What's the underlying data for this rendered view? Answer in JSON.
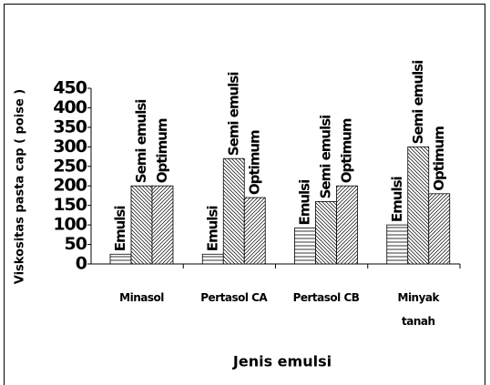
{
  "chart_data": {
    "type": "bar",
    "y_label": "Viskositas pasta cap ( poise )",
    "x_label": "Jenis emulsi",
    "categories": [
      "Minasol",
      "Pertasol CA",
      "Pertasol CB",
      "Minyak tanah"
    ],
    "series": [
      {
        "name": "Emulsi",
        "color": "#000000",
        "hatch": "horizontal",
        "values": [
          25,
          25,
          92,
          100
        ]
      },
      {
        "name": "Semi emulsi",
        "color": "#000000",
        "hatch": "diagonal-down",
        "values": [
          200,
          270,
          160,
          300
        ]
      },
      {
        "name": "Optimum",
        "color": "#000000",
        "hatch": "diagonal-up",
        "values": [
          200,
          170,
          200,
          180
        ]
      }
    ],
    "ylim": [
      0,
      450
    ],
    "yticks": [
      0,
      50,
      100,
      150,
      200,
      250,
      300,
      350,
      400,
      450
    ],
    "grid": false
  }
}
